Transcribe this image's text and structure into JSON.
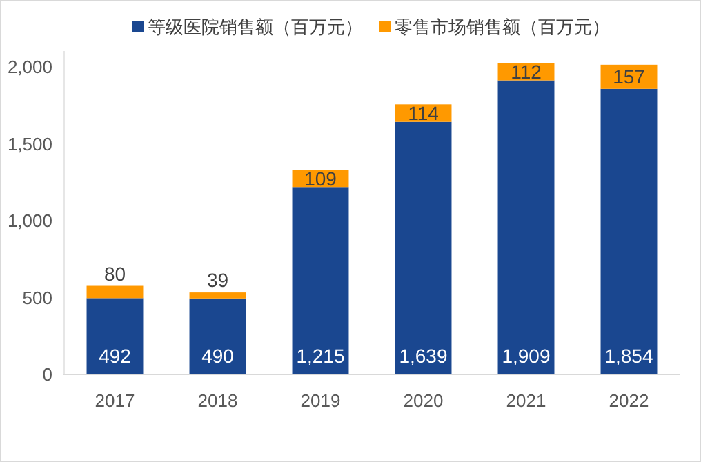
{
  "chart_data": {
    "type": "bar",
    "stacked": true,
    "categories": [
      "2017",
      "2018",
      "2019",
      "2020",
      "2021",
      "2022"
    ],
    "series": [
      {
        "name": "等级医院销售额（百万元）",
        "color": "#1a4790",
        "values": [
          492,
          490,
          1215,
          1639,
          1909,
          1854
        ],
        "value_labels": [
          "492",
          "490",
          "1,215",
          "1,639",
          "1,909",
          "1,854"
        ]
      },
      {
        "name": "零售市场销售额（百万元）",
        "color": "#ff9900",
        "values": [
          80,
          39,
          109,
          114,
          112,
          157
        ],
        "value_labels": [
          "80",
          "39",
          "109",
          "114",
          "112",
          "157"
        ]
      }
    ],
    "ylim": [
      0,
      2100
    ],
    "yticks": [
      0,
      500,
      {
        "value": 1000,
        "label": "1,000"
      },
      {
        "value": 1500,
        "label": "1,500"
      },
      {
        "value": 2000,
        "label": "2,000"
      }
    ],
    "legend": "top",
    "grid": false
  }
}
